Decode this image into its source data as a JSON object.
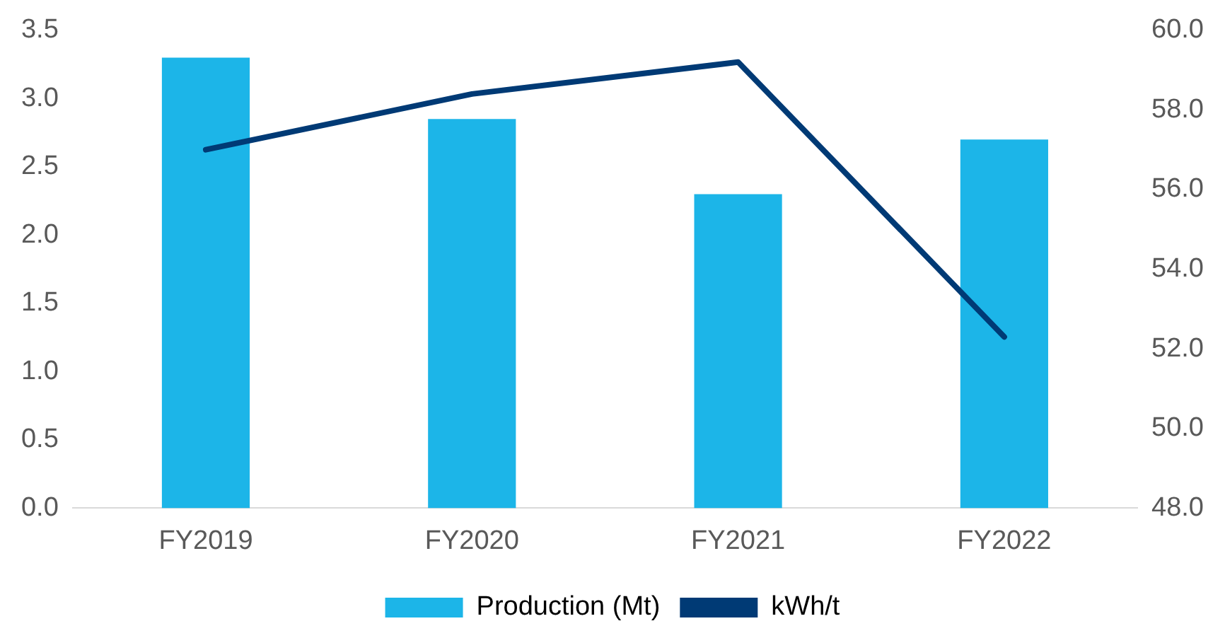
{
  "chart_data": {
    "type": "bar",
    "categories": [
      "FY2019",
      "FY2020",
      "FY2021",
      "FY2022"
    ],
    "series": [
      {
        "name": "Production (Mt)",
        "color": "#1cb5e8",
        "values": [
          3.3,
          2.85,
          2.3,
          2.7
        ]
      },
      {
        "name": "kWh/t",
        "type": "line",
        "axis": "y2",
        "color": "#003a75",
        "values": [
          57.0,
          58.4,
          59.2,
          52.3
        ]
      }
    ],
    "ylim": [
      0,
      3.5
    ],
    "yticks": [
      {
        "value": 0,
        "label": "0.0"
      },
      {
        "value": 0.5,
        "label": "0.5"
      },
      {
        "value": 1,
        "label": "1.0"
      },
      {
        "value": 1.5,
        "label": "1.5"
      },
      {
        "value": 2,
        "label": "2.0"
      },
      {
        "value": 2.5,
        "label": "2.5"
      },
      {
        "value": 3,
        "label": "3.0"
      },
      {
        "value": 3.5,
        "label": "3.5"
      }
    ],
    "y2lim": [
      48,
      60
    ],
    "y2ticks": [
      {
        "value": 48,
        "label": "48.0"
      },
      {
        "value": 50,
        "label": "50.0"
      },
      {
        "value": 52,
        "label": "52.0"
      },
      {
        "value": 54,
        "label": "54.0"
      },
      {
        "value": 56,
        "label": "56.0"
      },
      {
        "value": 58,
        "label": "58.0"
      },
      {
        "value": 60,
        "label": "60.0"
      }
    ],
    "grid": false,
    "legend": "bottom",
    "marker": "none"
  }
}
